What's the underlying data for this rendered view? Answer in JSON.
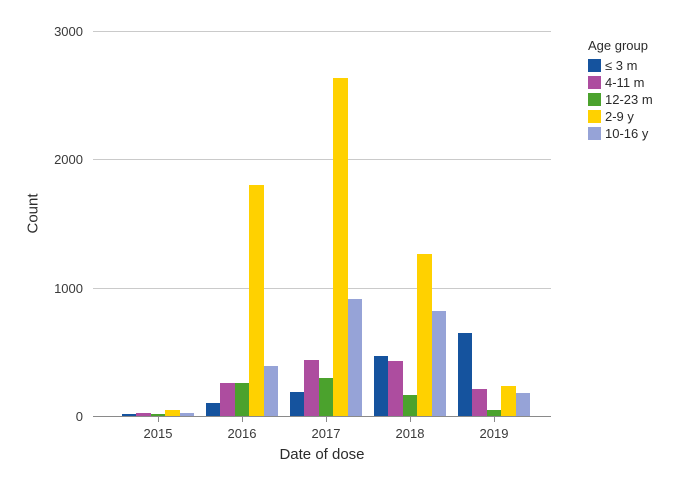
{
  "chart_data": {
    "type": "bar",
    "title": "",
    "categories": [
      "2015",
      "2016",
      "2017",
      "2018",
      "2019"
    ],
    "series": [
      {
        "name": "≤ 3 m",
        "color": "#15539e",
        "values": [
          15,
          100,
          190,
          465,
          645
        ]
      },
      {
        "name": "4-11 m",
        "color": "#ad4d9f",
        "values": [
          25,
          260,
          435,
          425,
          210
        ]
      },
      {
        "name": "12-23 m",
        "color": "#4ba22d",
        "values": [
          15,
          255,
          300,
          160,
          50
        ]
      },
      {
        "name": "2-9 y",
        "color": "#ffd100",
        "values": [
          45,
          1800,
          2630,
          1265,
          230
        ]
      },
      {
        "name": "10-16 y",
        "color": "#96a3d7",
        "values": [
          20,
          390,
          915,
          820,
          180
        ]
      }
    ],
    "xlabel": "Date of dose",
    "ylabel": "Count",
    "legend_title": "Age group",
    "ylim": [
      0,
      3000
    ],
    "yticks": [
      0,
      1000,
      2000,
      3000
    ],
    "legend_position": "top-right",
    "grid": "horizontal",
    "bar_gap_within_group": 0
  },
  "colors": {
    "grid": "#cacaca",
    "axis": "#8a8a8a",
    "text": "#3a3a3a",
    "background": "#ffffff"
  }
}
